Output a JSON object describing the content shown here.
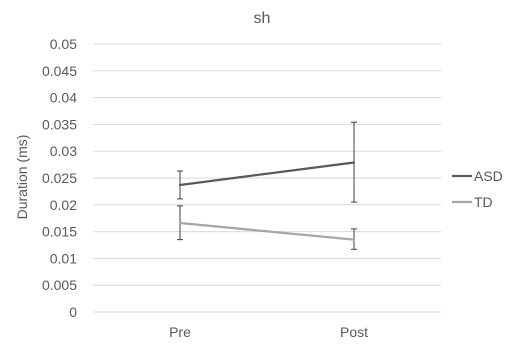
{
  "chart_data": {
    "type": "line",
    "title": "sh",
    "xlabel": "",
    "ylabel": "Duration (ms)",
    "categories": [
      "Pre",
      "Post"
    ],
    "ylim": [
      0,
      0.05
    ],
    "yticks": [
      "0",
      "0.005",
      "0.01",
      "0.015",
      "0.02",
      "0.025",
      "0.03",
      "0.035",
      "0.04",
      "0.045",
      "0.05"
    ],
    "grid": true,
    "legend_position": "right",
    "error_bars": true,
    "series": [
      {
        "name": "ASD",
        "color": "#595959",
        "values": [
          0.0237,
          0.0279
        ],
        "error_low": [
          0.0211,
          0.0205
        ],
        "error_high": [
          0.0263,
          0.0354
        ]
      },
      {
        "name": "TD",
        "color": "#a6a6a6",
        "values": [
          0.0166,
          0.0135
        ],
        "error_low": [
          0.0135,
          0.0117
        ],
        "error_high": [
          0.0198,
          0.0155
        ]
      }
    ]
  }
}
